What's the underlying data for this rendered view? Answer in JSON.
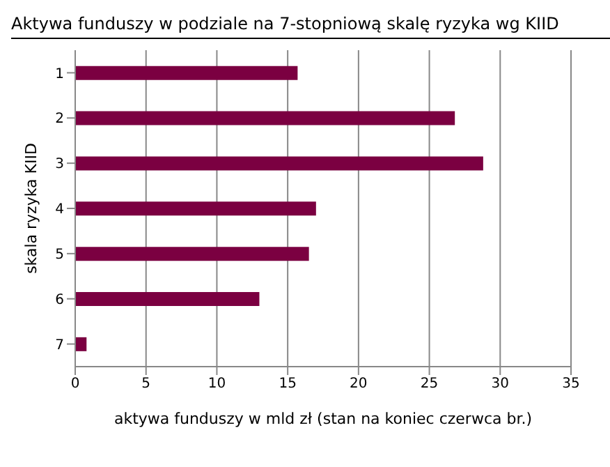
{
  "chart_data": {
    "type": "bar",
    "orientation": "horizontal",
    "title": "Aktywa funduszy w podziale na 7-stopniową skalę ryzyka wg KIID",
    "xlabel": "aktywa funduszy  w mld zł (stan  na koniec czerwca br.)",
    "ylabel": "skala ryzyka KIID",
    "categories": [
      "1",
      "2",
      "3",
      "4",
      "5",
      "6",
      "7"
    ],
    "values": [
      15.7,
      26.8,
      28.8,
      17.0,
      16.5,
      13.0,
      0.8
    ],
    "color": "#7b0041",
    "xlim": [
      0,
      35
    ],
    "xticks": [
      0,
      5,
      10,
      15,
      20,
      25,
      30,
      35
    ],
    "grid": "x"
  }
}
